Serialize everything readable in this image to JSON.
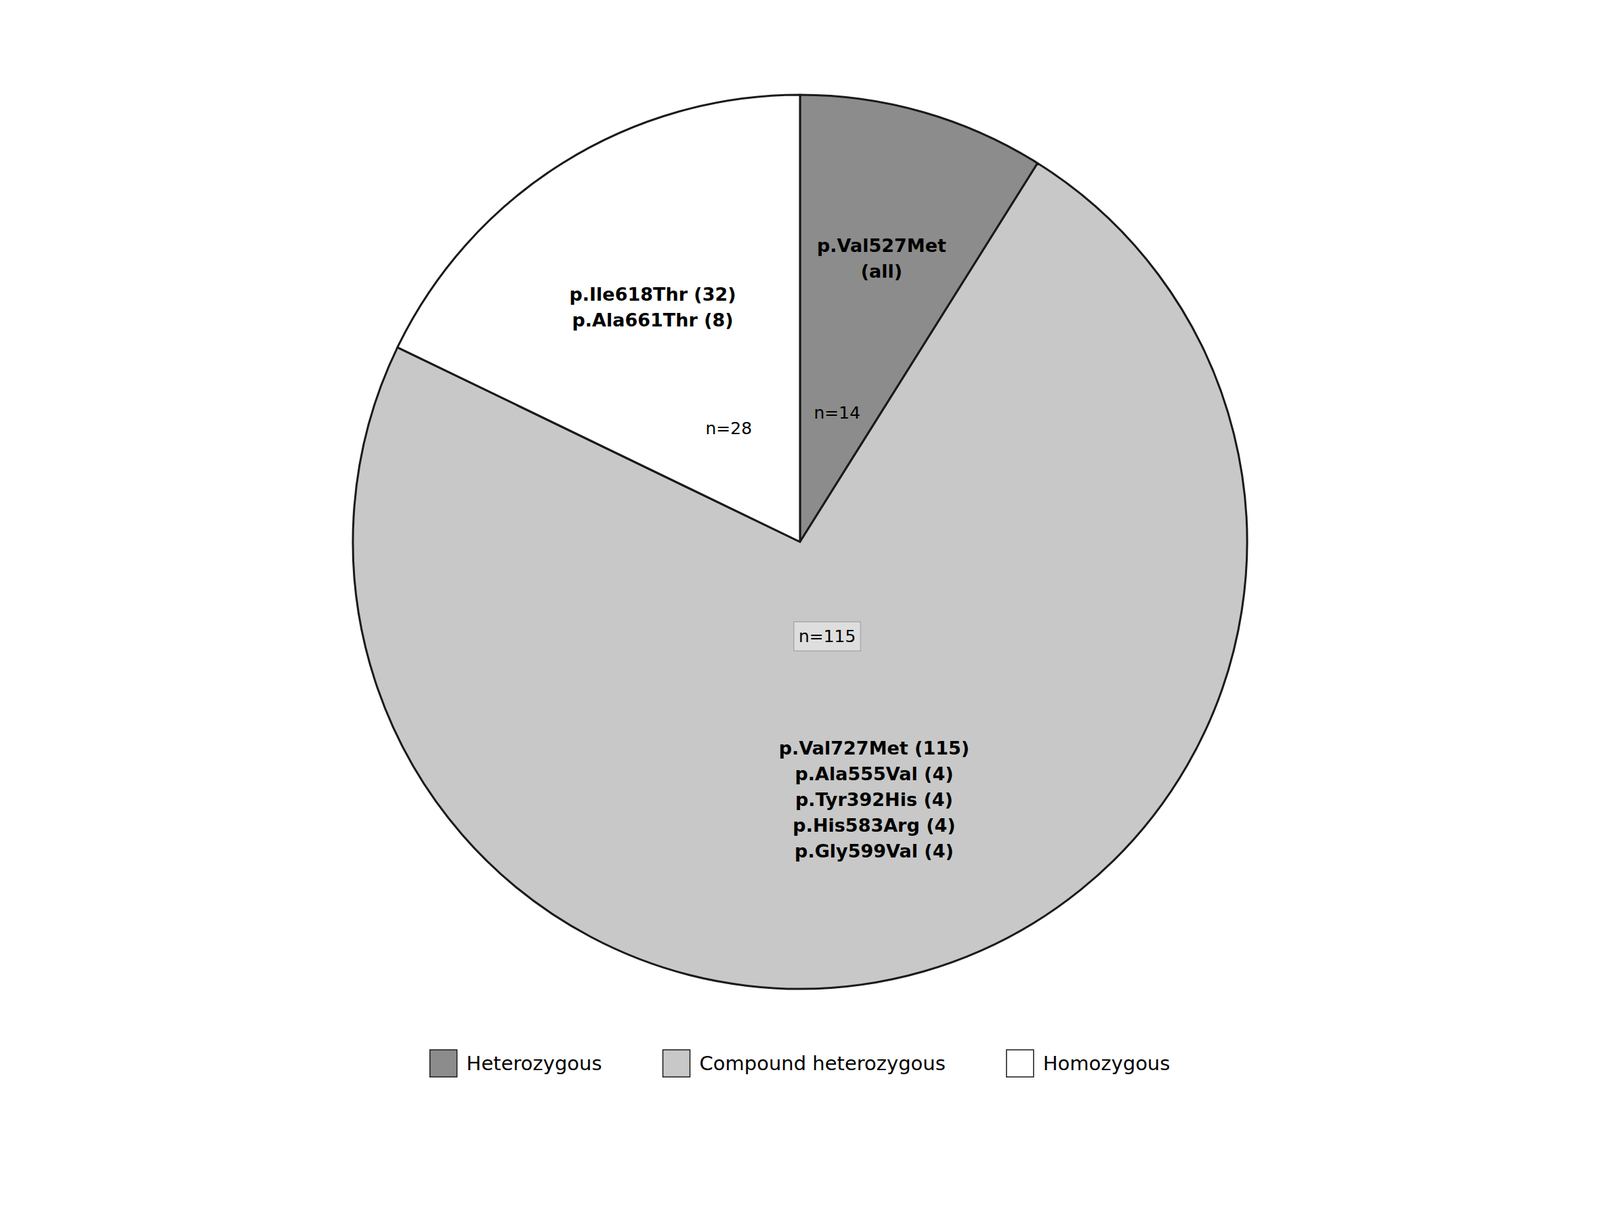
{
  "chart_data": {
    "type": "pie",
    "categories": [
      "Heterozygous",
      "Compound heterozygous",
      "Homozygous"
    ],
    "values": [
      14,
      115,
      28
    ],
    "colors": [
      "#8c8c8c",
      "#c8c8c8",
      "#ffffff"
    ],
    "data_labels": true,
    "value_labels": [
      "n=14",
      "n=115",
      "n=28"
    ],
    "annotations": [
      "p.Val527Met\n(all)",
      "p.Val727Met (115)\np.Ala555Val (4)\np.Tyr392His (4)\np.His583Arg (4)\np.Gly599Val (4)",
      "p.Ile618Thr (32)\np.Ala661Thr (8)"
    ],
    "legend": "bottom"
  }
}
